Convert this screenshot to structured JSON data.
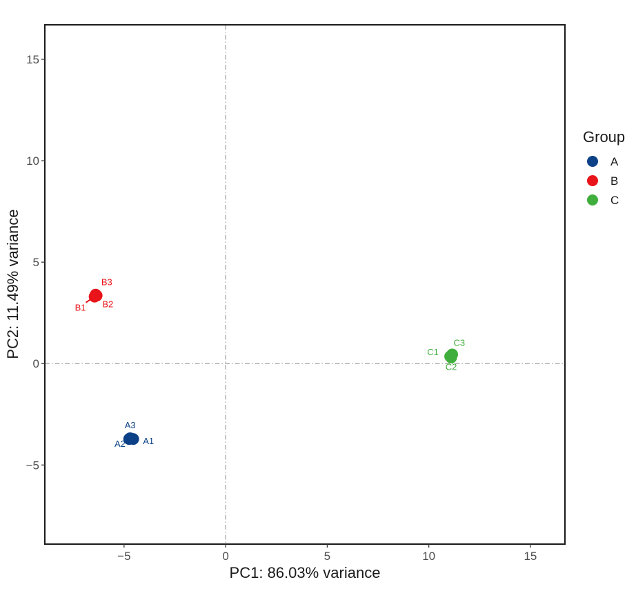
{
  "chart_data": {
    "type": "scatter",
    "xlabel": "PC1: 86.03% variance",
    "ylabel": "PC2: 11.49% variance",
    "xlim": [
      -8.9,
      16.7
    ],
    "ylim": [
      -8.9,
      16.7
    ],
    "x_ticks": [
      -5,
      0,
      5,
      10,
      15
    ],
    "y_ticks": [
      -5,
      0,
      5,
      10,
      15
    ],
    "x_tick_labels": [
      "−5",
      "0",
      "5",
      "10",
      "15"
    ],
    "y_tick_labels": [
      "−5",
      "0",
      "5",
      "10",
      "15"
    ],
    "grid": false,
    "reference_lines": {
      "x": 0,
      "y": 0,
      "style": "dash-dot",
      "color": "#a6a6a6"
    },
    "legend": {
      "title": "Group",
      "placement": "right",
      "entries": [
        {
          "label": "A",
          "color": "#0c4187"
        },
        {
          "label": "B",
          "color": "#e8141a"
        },
        {
          "label": "C",
          "color": "#3fae3c"
        }
      ]
    },
    "series": [
      {
        "name": "A",
        "color": "#0c4187",
        "points": [
          {
            "label": "A1",
            "x": -4.55,
            "y": -3.72,
            "label_x": -3.8,
            "label_y": -3.97
          },
          {
            "label": "A2",
            "x": -4.75,
            "y": -3.72,
            "label_x": -5.2,
            "label_y": -4.1
          },
          {
            "label": "A3",
            "x": -4.7,
            "y": -3.68,
            "label_x": -4.7,
            "label_y": -3.18
          }
        ]
      },
      {
        "name": "B",
        "color": "#e8141a",
        "points": [
          {
            "label": "B1",
            "x": -6.45,
            "y": 3.3,
            "label_x": -7.15,
            "label_y": 2.6,
            "leader": true
          },
          {
            "label": "B2",
            "x": -6.35,
            "y": 3.35,
            "label_x": -5.8,
            "label_y": 2.78
          },
          {
            "label": "B3",
            "x": -6.4,
            "y": 3.4,
            "label_x": -5.85,
            "label_y": 3.87
          }
        ]
      },
      {
        "name": "C",
        "color": "#3fae3c",
        "points": [
          {
            "label": "C1",
            "x": 11.05,
            "y": 0.35,
            "label_x": 10.2,
            "label_y": 0.42
          },
          {
            "label": "C2",
            "x": 11.1,
            "y": 0.3,
            "label_x": 11.1,
            "label_y": -0.32
          },
          {
            "label": "C3",
            "x": 11.15,
            "y": 0.45,
            "label_x": 11.5,
            "label_y": 0.88
          }
        ]
      }
    ]
  }
}
